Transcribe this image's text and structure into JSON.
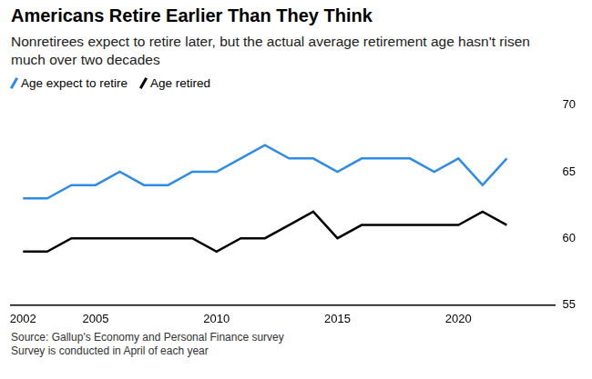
{
  "chart_data": {
    "type": "line",
    "title": "Americans Retire Earlier Than They Think",
    "subtitle": "Nonretirees expect to retire later, but the actual average retirement age hasn't risen much over two decades",
    "source": "Source: Gallup's Economy and Personal Finance survey",
    "note": "Survey is conducted in April of each year",
    "x": [
      2002,
      2003,
      2004,
      2005,
      2006,
      2007,
      2008,
      2009,
      2010,
      2011,
      2012,
      2013,
      2014,
      2015,
      2016,
      2017,
      2018,
      2019,
      2020,
      2021,
      2022
    ],
    "series": [
      {
        "name": "Age expect to retire",
        "color": "#2e8be6",
        "values": [
          63,
          63,
          64,
          64,
          65,
          64,
          64,
          65,
          65,
          66,
          67,
          66,
          66,
          65,
          66,
          66,
          66,
          65,
          66,
          64,
          66
        ]
      },
      {
        "name": "Age retired",
        "color": "#000000",
        "values": [
          59,
          59,
          60,
          60,
          60,
          60,
          60,
          60,
          59,
          60,
          60,
          61,
          62,
          60,
          61,
          61,
          61,
          61,
          61,
          62,
          61
        ]
      }
    ],
    "xlim": [
      2001.5,
      2024
    ],
    "xticks": [
      2002,
      2005,
      2010,
      2015,
      2020
    ],
    "ylim": [
      55,
      70
    ],
    "yticks": [
      55,
      60,
      65,
      70
    ],
    "grid": false,
    "legend": "top-left"
  }
}
